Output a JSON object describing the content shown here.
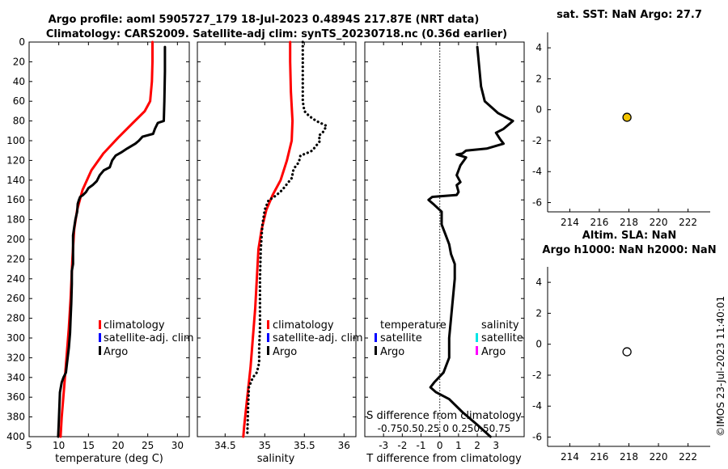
{
  "header": {
    "title_line1": "Argo profile: aoml 5905727_179 18-Jul-2023 0.4894S 217.87E (NRT data)",
    "title_line2": "Climatology: CARS2009. Satellite-adj clim: synTS_20230718.nc (0.36d earlier)"
  },
  "credit": "©IMOS 23-Jul-2023 11:40:01",
  "colors": {
    "climatology": "#ff0000",
    "satellite": "#0000ff",
    "argo": "#000000",
    "sal_satellite": "#00e5e5",
    "sal_argo": "#ff00ff",
    "sst_marker": "#f2c400"
  },
  "chart_data": [
    {
      "id": "temperature",
      "type": "line",
      "xlabel": "temperature (deg C)",
      "ylabel": "",
      "xlim": [
        5,
        32
      ],
      "ylim": [
        400,
        0
      ],
      "xticks": [
        5,
        10,
        15,
        20,
        25,
        30
      ],
      "yticks": [
        0,
        20,
        40,
        60,
        80,
        100,
        120,
        140,
        160,
        180,
        200,
        220,
        240,
        260,
        280,
        300,
        320,
        340,
        360,
        380,
        400
      ],
      "legend": [
        "climatology",
        "satellite-adj. clim",
        "Argo"
      ],
      "series": [
        {
          "name": "climatology",
          "style": "solid",
          "color": "#ff0000",
          "points": [
            [
              25.8,
              0
            ],
            [
              25.8,
              20
            ],
            [
              25.7,
              40
            ],
            [
              25.4,
              60
            ],
            [
              24.5,
              70
            ],
            [
              22.5,
              82
            ],
            [
              20.0,
              97
            ],
            [
              17.5,
              113
            ],
            [
              15.5,
              130
            ],
            [
              14.0,
              150
            ],
            [
              13.1,
              170
            ],
            [
              12.6,
              190
            ],
            [
              12.3,
              220
            ],
            [
              12.0,
              260
            ],
            [
              11.7,
              290
            ],
            [
              11.3,
              320
            ],
            [
              10.9,
              350
            ],
            [
              10.5,
              380
            ],
            [
              10.3,
              400
            ]
          ]
        },
        {
          "name": "Argo",
          "style": "solid",
          "color": "#000000",
          "points": [
            [
              27.9,
              5
            ],
            [
              27.9,
              30
            ],
            [
              27.8,
              60
            ],
            [
              27.7,
              80
            ],
            [
              26.7,
              82
            ],
            [
              26.2,
              88
            ],
            [
              25.9,
              93
            ],
            [
              24.1,
              96
            ],
            [
              23.5,
              100
            ],
            [
              22.9,
              103
            ],
            [
              21.5,
              108
            ],
            [
              20.5,
              112
            ],
            [
              19.6,
              115
            ],
            [
              19.0,
              120
            ],
            [
              18.6,
              127
            ],
            [
              17.6,
              130
            ],
            [
              16.9,
              135
            ],
            [
              16.4,
              141
            ],
            [
              15.7,
              145
            ],
            [
              15.0,
              148
            ],
            [
              14.6,
              152
            ],
            [
              14.1,
              155
            ],
            [
              13.6,
              157
            ],
            [
              13.4,
              160
            ],
            [
              13.2,
              164
            ],
            [
              13.1,
              172
            ],
            [
              12.8,
              180
            ],
            [
              12.6,
              188
            ],
            [
              12.4,
              196
            ],
            [
              12.4,
              210
            ],
            [
              12.4,
              225
            ],
            [
              12.2,
              232
            ],
            [
              12.2,
              245
            ],
            [
              12.1,
              265
            ],
            [
              12.0,
              280
            ],
            [
              11.9,
              295
            ],
            [
              11.7,
              310
            ],
            [
              11.4,
              325
            ],
            [
              11.2,
              335
            ],
            [
              10.8,
              340
            ],
            [
              10.5,
              345
            ],
            [
              10.2,
              355
            ],
            [
              10.1,
              370
            ],
            [
              10.0,
              385
            ],
            [
              9.9,
              400
            ]
          ]
        }
      ]
    },
    {
      "id": "salinity",
      "type": "line",
      "xlabel": "salinity",
      "ylabel": "",
      "xlim": [
        34.15,
        36.15
      ],
      "ylim": [
        400,
        0
      ],
      "xticks": [
        34.5,
        35,
        35.5,
        36
      ],
      "legend": [
        "climatology",
        "satellite-adj. clim",
        "Argo"
      ],
      "series": [
        {
          "name": "climatology",
          "style": "solid",
          "color": "#ff0000",
          "points": [
            [
              35.32,
              0
            ],
            [
              35.32,
              20
            ],
            [
              35.33,
              50
            ],
            [
              35.35,
              80
            ],
            [
              35.34,
              100
            ],
            [
              35.28,
              120
            ],
            [
              35.2,
              140
            ],
            [
              35.1,
              155
            ],
            [
              35.02,
              170
            ],
            [
              34.96,
              190
            ],
            [
              34.92,
              210
            ],
            [
              34.9,
              240
            ],
            [
              34.88,
              270
            ],
            [
              34.85,
              300
            ],
            [
              34.82,
              330
            ],
            [
              34.78,
              360
            ],
            [
              34.74,
              390
            ],
            [
              34.73,
              400
            ]
          ]
        },
        {
          "name": "Argo",
          "style": "dotted",
          "color": "#000000",
          "points": [
            [
              35.48,
              0
            ],
            [
              35.48,
              30
            ],
            [
              35.48,
              60
            ],
            [
              35.5,
              70
            ],
            [
              35.56,
              75
            ],
            [
              35.65,
              80
            ],
            [
              35.78,
              85
            ],
            [
              35.73,
              92
            ],
            [
              35.68,
              95
            ],
            [
              35.7,
              100
            ],
            [
              35.65,
              105
            ],
            [
              35.6,
              110
            ],
            [
              35.52,
              113
            ],
            [
              35.45,
              115
            ],
            [
              35.43,
              122
            ],
            [
              35.38,
              127
            ],
            [
              35.35,
              132
            ],
            [
              35.35,
              137
            ],
            [
              35.3,
              142
            ],
            [
              35.22,
              150
            ],
            [
              35.15,
              155
            ],
            [
              35.1,
              158
            ],
            [
              35.05,
              160
            ],
            [
              35.0,
              170
            ],
            [
              34.97,
              185
            ],
            [
              34.95,
              210
            ],
            [
              34.94,
              240
            ],
            [
              34.94,
              265
            ],
            [
              34.94,
              290
            ],
            [
              34.93,
              310
            ],
            [
              34.93,
              325
            ],
            [
              34.9,
              335
            ],
            [
              34.85,
              340
            ],
            [
              34.8,
              350
            ],
            [
              34.79,
              370
            ],
            [
              34.78,
              400
            ]
          ]
        }
      ]
    },
    {
      "id": "difference",
      "type": "line",
      "xlabel": "T difference from climatology",
      "top_label": "S difference from climatology",
      "xlim": [
        -4,
        4.5
      ],
      "ylim": [
        400,
        0
      ],
      "xticks": [
        -3,
        -2,
        -1,
        0,
        1,
        2,
        3
      ],
      "top_ticks": "-0.750.50.25 0  0.250.50.75",
      "legend_left_title": "temperature",
      "legend_left": [
        "satellite",
        "Argo"
      ],
      "legend_right_title": "salinity",
      "legend_right": [
        "satellite",
        "Argo"
      ],
      "series": [
        {
          "name": "Argo T difference",
          "style": "solid",
          "color": "#000000",
          "points": [
            [
              2.0,
              5
            ],
            [
              2.1,
              25
            ],
            [
              2.2,
              45
            ],
            [
              2.4,
              60
            ],
            [
              3.1,
              72
            ],
            [
              3.9,
              80
            ],
            [
              3.4,
              88
            ],
            [
              3.0,
              92
            ],
            [
              3.2,
              98
            ],
            [
              3.4,
              103
            ],
            [
              2.5,
              108
            ],
            [
              1.4,
              110
            ],
            [
              1.2,
              113
            ],
            [
              0.9,
              114
            ],
            [
              1.4,
              117
            ],
            [
              1.1,
              125
            ],
            [
              0.9,
              135
            ],
            [
              1.1,
              142
            ],
            [
              0.9,
              145
            ],
            [
              1.0,
              152
            ],
            [
              0.9,
              155
            ],
            [
              -0.4,
              157
            ],
            [
              -0.6,
              160
            ],
            [
              -0.3,
              165
            ],
            [
              0.1,
              172
            ],
            [
              0.1,
              185
            ],
            [
              0.3,
              195
            ],
            [
              0.5,
              205
            ],
            [
              0.6,
              215
            ],
            [
              0.8,
              225
            ],
            [
              0.8,
              240
            ],
            [
              0.7,
              260
            ],
            [
              0.6,
              280
            ],
            [
              0.5,
              300
            ],
            [
              0.5,
              320
            ],
            [
              0.2,
              335
            ],
            [
              -0.3,
              345
            ],
            [
              -0.5,
              350
            ],
            [
              -0.2,
              355
            ],
            [
              0.5,
              362
            ],
            [
              1.2,
              375
            ],
            [
              2.0,
              388
            ],
            [
              2.7,
              400
            ]
          ]
        }
      ]
    },
    {
      "id": "sst",
      "type": "scatter",
      "title": "sat. SST: NaN Argo: 27.7",
      "xlim": [
        212.5,
        223.5
      ],
      "ylim": [
        -6.6,
        5
      ],
      "xticks": [
        214,
        216,
        218,
        220,
        222
      ],
      "yticks": [
        4,
        2,
        0,
        -2,
        -4,
        -6
      ],
      "points": [
        {
          "x": 217.87,
          "y": -0.49
        }
      ]
    },
    {
      "id": "sla",
      "type": "scatter",
      "title_line1": "Altim. SLA: NaN",
      "title_line2": "Argo h1000: NaN h2000: NaN",
      "xlim": [
        212.5,
        223.5
      ],
      "ylim": [
        -6.6,
        5
      ],
      "xticks": [
        214,
        216,
        218,
        220,
        222
      ],
      "yticks": [
        4,
        2,
        0,
        -2,
        -4,
        -6
      ],
      "points": [
        {
          "x": 217.87,
          "y": -0.49
        }
      ]
    }
  ]
}
